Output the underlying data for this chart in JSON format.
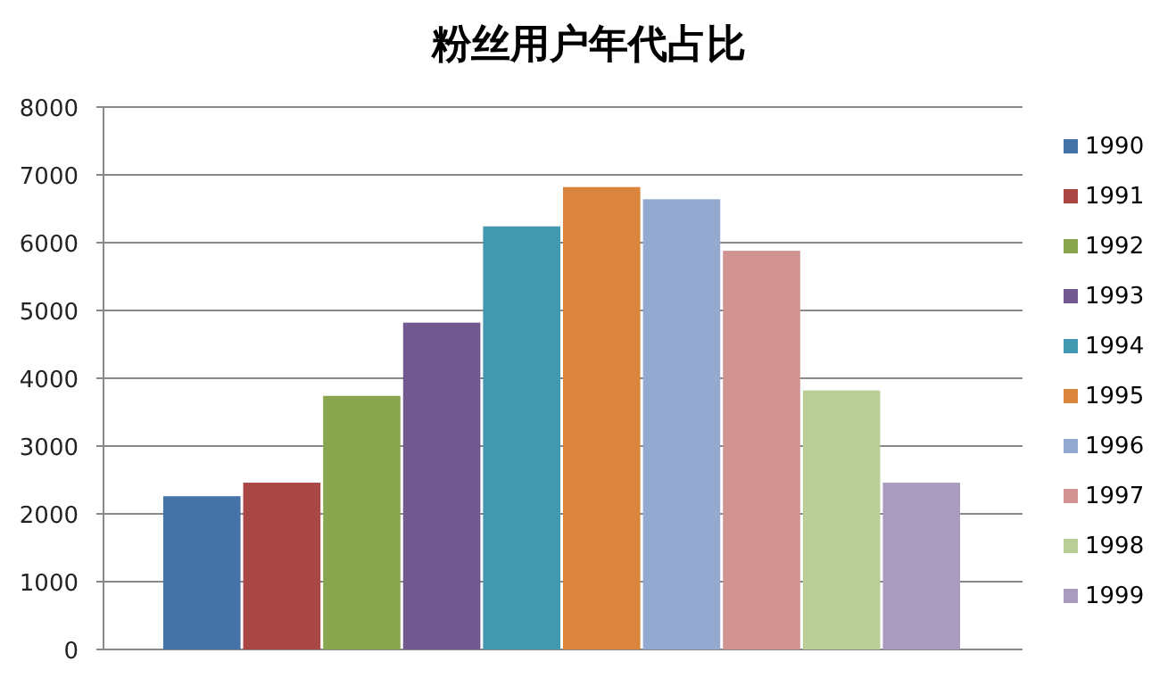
{
  "chart_data": {
    "type": "bar",
    "title": "粉丝用户年代占比",
    "categories": [
      null
    ],
    "ylim": [
      0,
      8000
    ],
    "yticks": [
      0,
      1000,
      2000,
      3000,
      4000,
      5000,
      6000,
      7000,
      8000
    ],
    "grid": "y",
    "legend": "right",
    "series": [
      {
        "name": "1990",
        "color": "#4572a7",
        "values": [
          2260
        ]
      },
      {
        "name": "1991",
        "color": "#aa4643",
        "values": [
          2460
        ]
      },
      {
        "name": "1992",
        "color": "#89a54e",
        "values": [
          3740
        ]
      },
      {
        "name": "1993",
        "color": "#71588f",
        "values": [
          4820
        ]
      },
      {
        "name": "1994",
        "color": "#4198af",
        "values": [
          6240
        ]
      },
      {
        "name": "1995",
        "color": "#db843d",
        "values": [
          6820
        ]
      },
      {
        "name": "1996",
        "color": "#93a9cf",
        "values": [
          6640
        ]
      },
      {
        "name": "1997",
        "color": "#d19392",
        "values": [
          5880
        ]
      },
      {
        "name": "1998",
        "color": "#b9cd96",
        "values": [
          3820
        ]
      },
      {
        "name": "1999",
        "color": "#a99bbd",
        "values": [
          2460
        ]
      }
    ]
  }
}
